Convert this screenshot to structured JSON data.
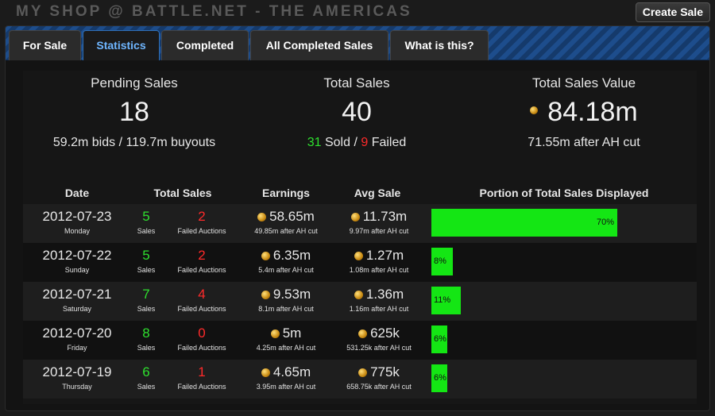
{
  "header": {
    "title": "MY SHOP @ BATTLE.NET - THE AMERICAS",
    "create_label": "Create Sale"
  },
  "tabs": [
    {
      "label": "For Sale",
      "active": false
    },
    {
      "label": "Statistics",
      "active": true
    },
    {
      "label": "Completed",
      "active": false
    },
    {
      "label": "All Completed Sales",
      "active": false
    },
    {
      "label": "What is this?",
      "active": false
    }
  ],
  "summary": {
    "pending": {
      "label": "Pending Sales",
      "value": "18",
      "sub": "59.2m bids / 119.7m buyouts"
    },
    "total": {
      "label": "Total Sales",
      "value": "40",
      "sold": "31",
      "sold_label": "Sold /",
      "failed": "9",
      "failed_label": "Failed"
    },
    "value": {
      "label": "Total Sales Value",
      "value": "84.18m",
      "sub": "71.55m after AH cut"
    }
  },
  "table": {
    "headers": {
      "date": "Date",
      "total_sales": "Total Sales",
      "earnings": "Earnings",
      "avg_sale": "Avg Sale",
      "portion": "Portion of Total Sales Displayed"
    },
    "sales_label": "Sales",
    "failed_label": "Failed Auctions",
    "rows": [
      {
        "date": "2012-07-23",
        "day": "Monday",
        "sales": "5",
        "failed": "2",
        "earnings": "58.65m",
        "earnings_sub": "49.85m after AH cut",
        "avg": "11.73m",
        "avg_sub": "9.97m after AH cut",
        "portion_pct": 70,
        "portion_label": "70%"
      },
      {
        "date": "2012-07-22",
        "day": "Sunday",
        "sales": "5",
        "failed": "2",
        "earnings": "6.35m",
        "earnings_sub": "5.4m after AH cut",
        "avg": "1.27m",
        "avg_sub": "1.08m after AH cut",
        "portion_pct": 8,
        "portion_label": "8%"
      },
      {
        "date": "2012-07-21",
        "day": "Saturday",
        "sales": "7",
        "failed": "4",
        "earnings": "9.53m",
        "earnings_sub": "8.1m after AH cut",
        "avg": "1.36m",
        "avg_sub": "1.16m after AH cut",
        "portion_pct": 11,
        "portion_label": "11%"
      },
      {
        "date": "2012-07-20",
        "day": "Friday",
        "sales": "8",
        "failed": "0",
        "earnings": "5m",
        "earnings_sub": "4.25m after AH cut",
        "avg": "625k",
        "avg_sub": "531.25k after AH cut",
        "portion_pct": 6,
        "portion_label": "6%"
      },
      {
        "date": "2012-07-19",
        "day": "Thursday",
        "sales": "6",
        "failed": "1",
        "earnings": "4.65m",
        "earnings_sub": "3.95m after AH cut",
        "avg": "775k",
        "avg_sub": "658.75k after AH cut",
        "portion_pct": 6,
        "portion_label": "6%"
      }
    ]
  }
}
